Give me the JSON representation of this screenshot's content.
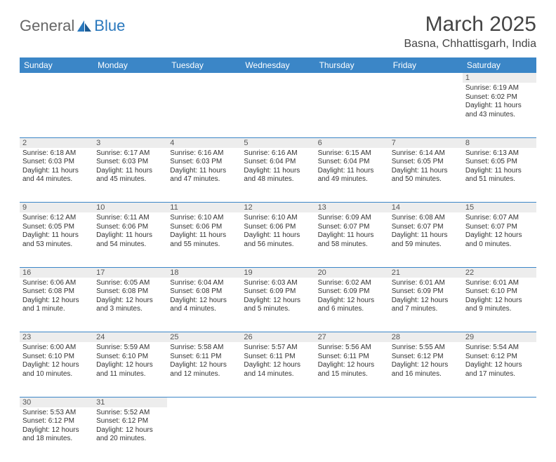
{
  "logo": {
    "general": "General",
    "blue": "Blue"
  },
  "title": "March 2025",
  "location": "Basna, Chhattisgarh, India",
  "colors": {
    "header_bg": "#3b86c7",
    "header_fg": "#ffffff",
    "daynum_bg": "#ededed",
    "border": "#3b86c7",
    "text": "#333333"
  },
  "weekdays": [
    "Sunday",
    "Monday",
    "Tuesday",
    "Wednesday",
    "Thursday",
    "Friday",
    "Saturday"
  ],
  "weeks": [
    {
      "nums": [
        "",
        "",
        "",
        "",
        "",
        "",
        "1"
      ],
      "cells": [
        null,
        null,
        null,
        null,
        null,
        null,
        {
          "sr": "Sunrise: 6:19 AM",
          "ss": "Sunset: 6:02 PM",
          "d1": "Daylight: 11 hours",
          "d2": "and 43 minutes."
        }
      ]
    },
    {
      "nums": [
        "2",
        "3",
        "4",
        "5",
        "6",
        "7",
        "8"
      ],
      "cells": [
        {
          "sr": "Sunrise: 6:18 AM",
          "ss": "Sunset: 6:03 PM",
          "d1": "Daylight: 11 hours",
          "d2": "and 44 minutes."
        },
        {
          "sr": "Sunrise: 6:17 AM",
          "ss": "Sunset: 6:03 PM",
          "d1": "Daylight: 11 hours",
          "d2": "and 45 minutes."
        },
        {
          "sr": "Sunrise: 6:16 AM",
          "ss": "Sunset: 6:03 PM",
          "d1": "Daylight: 11 hours",
          "d2": "and 47 minutes."
        },
        {
          "sr": "Sunrise: 6:16 AM",
          "ss": "Sunset: 6:04 PM",
          "d1": "Daylight: 11 hours",
          "d2": "and 48 minutes."
        },
        {
          "sr": "Sunrise: 6:15 AM",
          "ss": "Sunset: 6:04 PM",
          "d1": "Daylight: 11 hours",
          "d2": "and 49 minutes."
        },
        {
          "sr": "Sunrise: 6:14 AM",
          "ss": "Sunset: 6:05 PM",
          "d1": "Daylight: 11 hours",
          "d2": "and 50 minutes."
        },
        {
          "sr": "Sunrise: 6:13 AM",
          "ss": "Sunset: 6:05 PM",
          "d1": "Daylight: 11 hours",
          "d2": "and 51 minutes."
        }
      ]
    },
    {
      "nums": [
        "9",
        "10",
        "11",
        "12",
        "13",
        "14",
        "15"
      ],
      "cells": [
        {
          "sr": "Sunrise: 6:12 AM",
          "ss": "Sunset: 6:05 PM",
          "d1": "Daylight: 11 hours",
          "d2": "and 53 minutes."
        },
        {
          "sr": "Sunrise: 6:11 AM",
          "ss": "Sunset: 6:06 PM",
          "d1": "Daylight: 11 hours",
          "d2": "and 54 minutes."
        },
        {
          "sr": "Sunrise: 6:10 AM",
          "ss": "Sunset: 6:06 PM",
          "d1": "Daylight: 11 hours",
          "d2": "and 55 minutes."
        },
        {
          "sr": "Sunrise: 6:10 AM",
          "ss": "Sunset: 6:06 PM",
          "d1": "Daylight: 11 hours",
          "d2": "and 56 minutes."
        },
        {
          "sr": "Sunrise: 6:09 AM",
          "ss": "Sunset: 6:07 PM",
          "d1": "Daylight: 11 hours",
          "d2": "and 58 minutes."
        },
        {
          "sr": "Sunrise: 6:08 AM",
          "ss": "Sunset: 6:07 PM",
          "d1": "Daylight: 11 hours",
          "d2": "and 59 minutes."
        },
        {
          "sr": "Sunrise: 6:07 AM",
          "ss": "Sunset: 6:07 PM",
          "d1": "Daylight: 12 hours",
          "d2": "and 0 minutes."
        }
      ]
    },
    {
      "nums": [
        "16",
        "17",
        "18",
        "19",
        "20",
        "21",
        "22"
      ],
      "cells": [
        {
          "sr": "Sunrise: 6:06 AM",
          "ss": "Sunset: 6:08 PM",
          "d1": "Daylight: 12 hours",
          "d2": "and 1 minute."
        },
        {
          "sr": "Sunrise: 6:05 AM",
          "ss": "Sunset: 6:08 PM",
          "d1": "Daylight: 12 hours",
          "d2": "and 3 minutes."
        },
        {
          "sr": "Sunrise: 6:04 AM",
          "ss": "Sunset: 6:08 PM",
          "d1": "Daylight: 12 hours",
          "d2": "and 4 minutes."
        },
        {
          "sr": "Sunrise: 6:03 AM",
          "ss": "Sunset: 6:09 PM",
          "d1": "Daylight: 12 hours",
          "d2": "and 5 minutes."
        },
        {
          "sr": "Sunrise: 6:02 AM",
          "ss": "Sunset: 6:09 PM",
          "d1": "Daylight: 12 hours",
          "d2": "and 6 minutes."
        },
        {
          "sr": "Sunrise: 6:01 AM",
          "ss": "Sunset: 6:09 PM",
          "d1": "Daylight: 12 hours",
          "d2": "and 7 minutes."
        },
        {
          "sr": "Sunrise: 6:01 AM",
          "ss": "Sunset: 6:10 PM",
          "d1": "Daylight: 12 hours",
          "d2": "and 9 minutes."
        }
      ]
    },
    {
      "nums": [
        "23",
        "24",
        "25",
        "26",
        "27",
        "28",
        "29"
      ],
      "cells": [
        {
          "sr": "Sunrise: 6:00 AM",
          "ss": "Sunset: 6:10 PM",
          "d1": "Daylight: 12 hours",
          "d2": "and 10 minutes."
        },
        {
          "sr": "Sunrise: 5:59 AM",
          "ss": "Sunset: 6:10 PM",
          "d1": "Daylight: 12 hours",
          "d2": "and 11 minutes."
        },
        {
          "sr": "Sunrise: 5:58 AM",
          "ss": "Sunset: 6:11 PM",
          "d1": "Daylight: 12 hours",
          "d2": "and 12 minutes."
        },
        {
          "sr": "Sunrise: 5:57 AM",
          "ss": "Sunset: 6:11 PM",
          "d1": "Daylight: 12 hours",
          "d2": "and 14 minutes."
        },
        {
          "sr": "Sunrise: 5:56 AM",
          "ss": "Sunset: 6:11 PM",
          "d1": "Daylight: 12 hours",
          "d2": "and 15 minutes."
        },
        {
          "sr": "Sunrise: 5:55 AM",
          "ss": "Sunset: 6:12 PM",
          "d1": "Daylight: 12 hours",
          "d2": "and 16 minutes."
        },
        {
          "sr": "Sunrise: 5:54 AM",
          "ss": "Sunset: 6:12 PM",
          "d1": "Daylight: 12 hours",
          "d2": "and 17 minutes."
        }
      ]
    },
    {
      "nums": [
        "30",
        "31",
        "",
        "",
        "",
        "",
        ""
      ],
      "cells": [
        {
          "sr": "Sunrise: 5:53 AM",
          "ss": "Sunset: 6:12 PM",
          "d1": "Daylight: 12 hours",
          "d2": "and 18 minutes."
        },
        {
          "sr": "Sunrise: 5:52 AM",
          "ss": "Sunset: 6:12 PM",
          "d1": "Daylight: 12 hours",
          "d2": "and 20 minutes."
        },
        null,
        null,
        null,
        null,
        null
      ]
    }
  ]
}
